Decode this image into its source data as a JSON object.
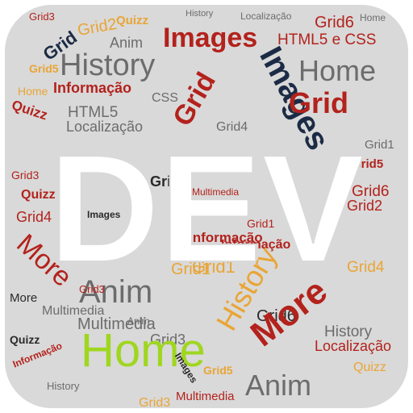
{
  "title": "DEV",
  "colors": {
    "tile": "#d9d9d9",
    "red": "#b3221c",
    "navy": "#1c2b45",
    "orange": "#e9a535",
    "gray": "#6c6c6c",
    "lime": "#9fd61f",
    "dark": "#2a2a2a",
    "white": "#ffffff"
  },
  "words": [
    {
      "text": "Grid3",
      "color": "red"
    },
    {
      "text": "Quizz",
      "color": "orange"
    },
    {
      "text": "History",
      "color": "gray"
    },
    {
      "text": "Localização",
      "color": "gray"
    },
    {
      "text": "Grid6",
      "color": "red"
    },
    {
      "text": "Home",
      "color": "gray"
    },
    {
      "text": "Images",
      "color": "red"
    },
    {
      "text": "HTML5 e CSS",
      "color": "red"
    },
    {
      "text": "Grid2",
      "color": "orange"
    },
    {
      "text": "Anim",
      "color": "gray"
    },
    {
      "text": "Grid",
      "color": "navy"
    },
    {
      "text": "Grid5",
      "color": "orange"
    },
    {
      "text": "Images",
      "color": "navy"
    },
    {
      "text": "Home",
      "color": "gray"
    },
    {
      "text": "History",
      "color": "gray"
    },
    {
      "text": "Grid",
      "color": "red"
    },
    {
      "text": "Informação",
      "color": "red"
    },
    {
      "text": "Home",
      "color": "orange"
    },
    {
      "text": "Quizz",
      "color": "red"
    },
    {
      "text": "HTML5",
      "color": "gray"
    },
    {
      "text": "Localização",
      "color": "gray"
    },
    {
      "text": "Grid4",
      "color": "gray"
    },
    {
      "text": "CSS",
      "color": "gray"
    },
    {
      "text": "Grid",
      "color": "red"
    },
    {
      "text": "Grid1",
      "color": "gray"
    },
    {
      "text": "Grid6",
      "color": "red"
    },
    {
      "text": "Grid5",
      "color": "red"
    },
    {
      "text": "Grid2",
      "color": "red"
    },
    {
      "text": "Grid3",
      "color": "red"
    },
    {
      "text": "Quizz",
      "color": "red"
    },
    {
      "text": "Grid4",
      "color": "red"
    },
    {
      "text": "Images",
      "color": "dark"
    },
    {
      "text": "Grid2",
      "color": "dark"
    },
    {
      "text": "Multimedia",
      "color": "red"
    },
    {
      "text": "Grid5",
      "color": "orange"
    },
    {
      "text": "Grid1",
      "color": "red"
    },
    {
      "text": "Informação",
      "color": "red"
    },
    {
      "text": "More",
      "color": "red"
    },
    {
      "text": "History",
      "color": "orange"
    },
    {
      "text": "Anim",
      "color": "gray"
    },
    {
      "text": "Grid1",
      "color": "orange"
    },
    {
      "text": "Grid4",
      "color": "orange"
    },
    {
      "text": "More",
      "color": "dark"
    },
    {
      "text": "Multimedia",
      "color": "gray"
    },
    {
      "text": "Grid3",
      "color": "gray"
    },
    {
      "text": "Grid6",
      "color": "dark"
    },
    {
      "text": "More",
      "color": "red"
    },
    {
      "text": "History",
      "color": "gray"
    },
    {
      "text": "Localização",
      "color": "red"
    },
    {
      "text": "Informação",
      "color": "red"
    },
    {
      "text": "Quizz",
      "color": "orange"
    },
    {
      "text": "Grid3",
      "color": "red"
    },
    {
      "text": "Anim",
      "color": "gray"
    },
    {
      "text": "Multimedia",
      "color": "red"
    },
    {
      "text": "Home",
      "color": "lime"
    },
    {
      "text": "History",
      "color": "gray"
    },
    {
      "text": "Quizz",
      "color": "dark"
    },
    {
      "text": "Images",
      "color": "dark"
    },
    {
      "text": "Grid3",
      "color": "orange"
    },
    {
      "text": "Informação",
      "color": "red"
    },
    {
      "text": "Grid5",
      "color": "orange"
    },
    {
      "text": "Multimedia",
      "color": "gray"
    },
    {
      "text": "Anim",
      "color": "gray"
    },
    {
      "text": "Grid1",
      "color": "orange"
    }
  ]
}
